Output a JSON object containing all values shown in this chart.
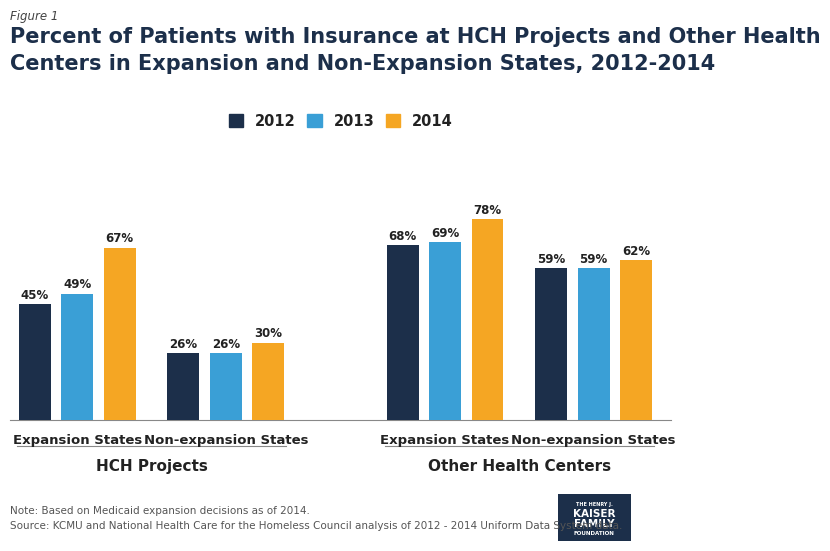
{
  "figure_label": "Figure 1",
  "title_line1": "Percent of Patients with Insurance at HCH Projects and Other Health",
  "title_line2": "Centers in Expansion and Non-Expansion States, 2012-2014",
  "groups": [
    {
      "label": "Expansion States",
      "values": [
        45,
        49,
        67
      ]
    },
    {
      "label": "Non-expansion States",
      "values": [
        26,
        26,
        30
      ]
    },
    {
      "label": "Expansion States",
      "values": [
        68,
        69,
        78
      ]
    },
    {
      "label": "Non-expansion States",
      "values": [
        59,
        59,
        62
      ]
    }
  ],
  "group_section_labels": [
    "HCH Projects",
    "Other Health Centers"
  ],
  "years": [
    "2012",
    "2013",
    "2014"
  ],
  "bar_colors": [
    "#1c2f4a",
    "#3a9fd6",
    "#f5a623"
  ],
  "ylim": [
    0,
    90
  ],
  "note_line1": "Note: Based on Medicaid expansion decisions as of 2014.",
  "note_line2": "Source: KCMU and National Health Care for the Homeless Council analysis of 2012 - 2014 Uniform Data System data.",
  "legend_labels": [
    "2012",
    "2013",
    "2014"
  ],
  "background_color": "#ffffff",
  "title_fontsize": 15,
  "label_fontsize": 9.5,
  "bar_value_fontsize": 8.5
}
